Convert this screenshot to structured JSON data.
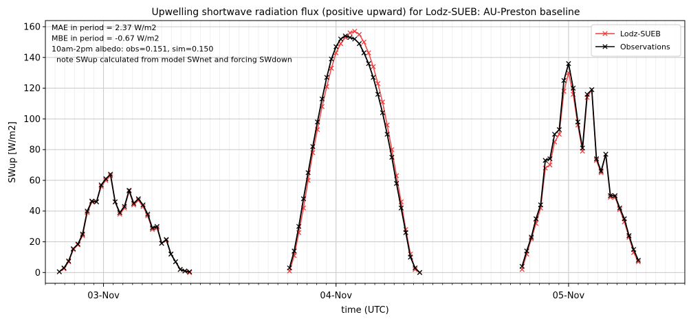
{
  "chart_data": {
    "type": "line",
    "title": "Upwelling shortwave radiation flux (positive upward) for Lodz-SUEB: AU-Preston baseline",
    "xlabel": "time (UTC)",
    "ylabel": "SWup [W/m2]",
    "ylim": [
      -7,
      164
    ],
    "xlim_hours": [
      -25,
      250
    ],
    "yticks": [
      0,
      20,
      40,
      60,
      80,
      100,
      120,
      140,
      160
    ],
    "xticks": [
      {
        "hour": 0,
        "label": "03-Nov"
      },
      {
        "hour": 100,
        "label": "04-Nov"
      },
      {
        "hour": 200,
        "label": "05-Nov"
      }
    ],
    "grid": true,
    "legend_position": "top-right",
    "annotations": [
      "MAE in period = 2.37 W/m2",
      "MBE in period = -0.67 W/m2",
      "10am-2pm albedo: obs=0.151, sim=0.150",
      "  note SWup calculated from model SWnet and forcing SWdown"
    ],
    "colors": {
      "model": "#f03a3a",
      "obs": "#000000",
      "grid": "#c8c8c8"
    },
    "series": [
      {
        "name": "Lodz-SUEB",
        "color": "#f03a3a",
        "points": [
          [
            -19,
            0.5
          ],
          [
            -17,
            2.5
          ],
          [
            -15,
            7
          ],
          [
            -13,
            15
          ],
          [
            -11,
            18
          ],
          [
            -9,
            24
          ],
          [
            -7,
            39
          ],
          [
            -5,
            46
          ],
          [
            -3,
            46
          ],
          [
            -1,
            56
          ],
          [
            1,
            60
          ],
          [
            3,
            63
          ],
          [
            5,
            46
          ],
          [
            7,
            38
          ],
          [
            9,
            42
          ],
          [
            11,
            53
          ],
          [
            13,
            44
          ],
          [
            15,
            47
          ],
          [
            17,
            43
          ],
          [
            19,
            37
          ],
          [
            21,
            28
          ],
          [
            23,
            29
          ],
          [
            25,
            19
          ],
          [
            27,
            21
          ],
          [
            29,
            12
          ],
          [
            31,
            7
          ],
          [
            33,
            2
          ],
          [
            35,
            1
          ],
          [
            37,
            0
          ],
          [
            80,
            1
          ],
          [
            82,
            11
          ],
          [
            84,
            26
          ],
          [
            86,
            42
          ],
          [
            88,
            60
          ],
          [
            90,
            78
          ],
          [
            92,
            93
          ],
          [
            94,
            108
          ],
          [
            96,
            121
          ],
          [
            98,
            133
          ],
          [
            100,
            143
          ],
          [
            102,
            149
          ],
          [
            104,
            153
          ],
          [
            106,
            156
          ],
          [
            108,
            157
          ],
          [
            110,
            155
          ],
          [
            112,
            150
          ],
          [
            114,
            143
          ],
          [
            116,
            134
          ],
          [
            118,
            123
          ],
          [
            120,
            111
          ],
          [
            122,
            96
          ],
          [
            124,
            80
          ],
          [
            126,
            63
          ],
          [
            128,
            46
          ],
          [
            130,
            28
          ],
          [
            132,
            12
          ],
          [
            134,
            2
          ],
          [
            136,
            0
          ],
          [
            180,
            2
          ],
          [
            182,
            12
          ],
          [
            184,
            22
          ],
          [
            186,
            32
          ],
          [
            188,
            42
          ],
          [
            190,
            68
          ],
          [
            192,
            70
          ],
          [
            194,
            85
          ],
          [
            196,
            90
          ],
          [
            198,
            118
          ],
          [
            200,
            130
          ],
          [
            202,
            116
          ],
          [
            204,
            96
          ],
          [
            206,
            79
          ],
          [
            208,
            114
          ],
          [
            210,
            119
          ],
          [
            212,
            73
          ],
          [
            214,
            65
          ],
          [
            216,
            77
          ],
          [
            218,
            49
          ],
          [
            220,
            49
          ],
          [
            222,
            41
          ],
          [
            224,
            33
          ],
          [
            226,
            23
          ],
          [
            228,
            13
          ],
          [
            230,
            7
          ]
        ]
      },
      {
        "name": "Observations",
        "color": "#000000",
        "points": [
          [
            -19,
            0.5
          ],
          [
            -17,
            3
          ],
          [
            -15,
            7.5
          ],
          [
            -13,
            15.5
          ],
          [
            -11,
            18.5
          ],
          [
            -9,
            25
          ],
          [
            -7,
            40
          ],
          [
            -5,
            46.5
          ],
          [
            -3,
            46
          ],
          [
            -1,
            57
          ],
          [
            1,
            61
          ],
          [
            3,
            64
          ],
          [
            5,
            46
          ],
          [
            7,
            39
          ],
          [
            9,
            43
          ],
          [
            11,
            53.5
          ],
          [
            13,
            45
          ],
          [
            15,
            48
          ],
          [
            17,
            44
          ],
          [
            19,
            38
          ],
          [
            21,
            29
          ],
          [
            23,
            30
          ],
          [
            25,
            19
          ],
          [
            27,
            21.5
          ],
          [
            29,
            12
          ],
          [
            31,
            7
          ],
          [
            33,
            2
          ],
          [
            35,
            1
          ],
          [
            37,
            0.5
          ],
          [
            80,
            3
          ],
          [
            82,
            14
          ],
          [
            84,
            30
          ],
          [
            86,
            48
          ],
          [
            88,
            65
          ],
          [
            90,
            82
          ],
          [
            92,
            98
          ],
          [
            94,
            113
          ],
          [
            96,
            127
          ],
          [
            98,
            139
          ],
          [
            100,
            147
          ],
          [
            102,
            152
          ],
          [
            104,
            154
          ],
          [
            106,
            153
          ],
          [
            108,
            152
          ],
          [
            110,
            149
          ],
          [
            112,
            143
          ],
          [
            114,
            136
          ],
          [
            116,
            127
          ],
          [
            118,
            116
          ],
          [
            120,
            104
          ],
          [
            122,
            90
          ],
          [
            124,
            75
          ],
          [
            126,
            58
          ],
          [
            128,
            42
          ],
          [
            130,
            26
          ],
          [
            132,
            10
          ],
          [
            134,
            3
          ],
          [
            136,
            0
          ],
          [
            180,
            4
          ],
          [
            182,
            14
          ],
          [
            184,
            23
          ],
          [
            186,
            35
          ],
          [
            188,
            44
          ],
          [
            190,
            73
          ],
          [
            192,
            74
          ],
          [
            194,
            90
          ],
          [
            196,
            93
          ],
          [
            198,
            125
          ],
          [
            200,
            136
          ],
          [
            202,
            120
          ],
          [
            204,
            98
          ],
          [
            206,
            81
          ],
          [
            208,
            116
          ],
          [
            210,
            119
          ],
          [
            212,
            74
          ],
          [
            214,
            66
          ],
          [
            216,
            77
          ],
          [
            218,
            50
          ],
          [
            220,
            50
          ],
          [
            222,
            42
          ],
          [
            224,
            35
          ],
          [
            226,
            24
          ],
          [
            228,
            15
          ],
          [
            230,
            8
          ]
        ]
      }
    ]
  }
}
